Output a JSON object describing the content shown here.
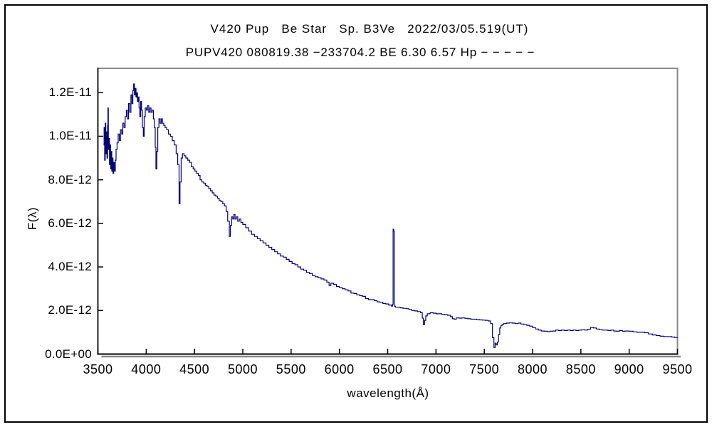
{
  "window": {
    "background": "#ffffff",
    "border_color": "#000000"
  },
  "chart_data": {
    "type": "line",
    "title": "V420 Pup   Be Star   Sp. B3Ve   2022/03/05.519(UT)",
    "subtitle": "PUPV420 080819.38 −233704.2 BE 6.30 6.57 Hp − − − − −",
    "xlabel": "wavelength(Å)",
    "ylabel": "F(λ)",
    "xlim": [
      3500,
      9500
    ],
    "ylim": [
      0,
      1.312e-11
    ],
    "grid": false,
    "legend": "none",
    "line_color": "#000078",
    "axis_color": "#000000",
    "frame_color": "#8a8a8a",
    "x_ticks": [
      {
        "v": 3500,
        "label": "3500"
      },
      {
        "v": 4000,
        "label": "4000"
      },
      {
        "v": 4500,
        "label": "4500"
      },
      {
        "v": 5000,
        "label": "5000"
      },
      {
        "v": 5500,
        "label": "5500"
      },
      {
        "v": 6000,
        "label": "6000"
      },
      {
        "v": 6500,
        "label": "6500"
      },
      {
        "v": 7000,
        "label": "7000"
      },
      {
        "v": 7500,
        "label": "7500"
      },
      {
        "v": 8000,
        "label": "8000"
      },
      {
        "v": 8500,
        "label": "8500"
      },
      {
        "v": 9000,
        "label": "9000"
      },
      {
        "v": 9500,
        "label": "9500"
      }
    ],
    "y_ticks": [
      {
        "v": 12,
        "label": "1.2E-11"
      },
      {
        "v": 10,
        "label": "1.0E-11"
      },
      {
        "v": 8,
        "label": "8.0E-12"
      },
      {
        "v": 6,
        "label": "6.0E-12"
      },
      {
        "v": 4,
        "label": "4.0E-12"
      },
      {
        "v": 2,
        "label": "2.0E-12"
      },
      {
        "v": 0,
        "label": "0.0E+00"
      }
    ],
    "points_lambda_A_flux_1e12": [
      [
        3558,
        9.6
      ],
      [
        3564,
        10.4
      ],
      [
        3570,
        8.9
      ],
      [
        3576,
        10.6
      ],
      [
        3582,
        9.2
      ],
      [
        3588,
        10.2
      ],
      [
        3594,
        9.0
      ],
      [
        3600,
        10.5
      ],
      [
        3604,
        11.3
      ],
      [
        3608,
        9.4
      ],
      [
        3614,
        9.9
      ],
      [
        3620,
        8.7
      ],
      [
        3626,
        9.6
      ],
      [
        3632,
        8.5
      ],
      [
        3638,
        9.3
      ],
      [
        3644,
        8.4
      ],
      [
        3650,
        9.0
      ],
      [
        3656,
        8.3
      ],
      [
        3664,
        8.8
      ],
      [
        3672,
        8.4
      ],
      [
        3680,
        8.9
      ],
      [
        3688,
        9.4
      ],
      [
        3698,
        9.7
      ],
      [
        3710,
        10.1
      ],
      [
        3722,
        9.8
      ],
      [
        3734,
        10.3
      ],
      [
        3746,
        10.1
      ],
      [
        3758,
        10.6
      ],
      [
        3770,
        10.4
      ],
      [
        3782,
        10.9
      ],
      [
        3794,
        11.2
      ],
      [
        3806,
        10.8
      ],
      [
        3818,
        11.5
      ],
      [
        3830,
        11.1
      ],
      [
        3842,
        11.9
      ],
      [
        3852,
        11.5
      ],
      [
        3862,
        12.1
      ],
      [
        3870,
        12.4
      ],
      [
        3878,
        11.9
      ],
      [
        3886,
        12.2
      ],
      [
        3894,
        11.8
      ],
      [
        3902,
        12.0
      ],
      [
        3910,
        11.6
      ],
      [
        3918,
        11.8
      ],
      [
        3926,
        11.3
      ],
      [
        3934,
        10.9
      ],
      [
        3943,
        11.6
      ],
      [
        3952,
        11.2
      ],
      [
        3961,
        10.4
      ],
      [
        3970,
        10.0
      ],
      [
        3979,
        10.9
      ],
      [
        3990,
        11.3
      ],
      [
        4002,
        11.2
      ],
      [
        4014,
        11.4
      ],
      [
        4026,
        11.1
      ],
      [
        4038,
        11.3
      ],
      [
        4050,
        11.1
      ],
      [
        4062,
        11.2
      ],
      [
        4074,
        10.8
      ],
      [
        4084,
        10.4
      ],
      [
        4093,
        9.5
      ],
      [
        4101,
        8.5
      ],
      [
        4110,
        9.3
      ],
      [
        4120,
        10.4
      ],
      [
        4132,
        10.8
      ],
      [
        4144,
        10.6
      ],
      [
        4156,
        10.8
      ],
      [
        4168,
        10.6
      ],
      [
        4182,
        10.5
      ],
      [
        4196,
        10.4
      ],
      [
        4212,
        10.3
      ],
      [
        4230,
        10.1
      ],
      [
        4250,
        10.0
      ],
      [
        4270,
        9.8
      ],
      [
        4290,
        9.6
      ],
      [
        4310,
        9.2
      ],
      [
        4326,
        8.7
      ],
      [
        4340,
        6.9
      ],
      [
        4350,
        7.9
      ],
      [
        4362,
        9.0
      ],
      [
        4376,
        9.2
      ],
      [
        4392,
        9.1
      ],
      [
        4410,
        9.0
      ],
      [
        4430,
        8.9
      ],
      [
        4450,
        8.8
      ],
      [
        4468,
        8.6
      ],
      [
        4486,
        8.5
      ],
      [
        4504,
        8.4
      ],
      [
        4522,
        8.3
      ],
      [
        4540,
        8.2
      ],
      [
        4558,
        8.0
      ],
      [
        4576,
        7.9
      ],
      [
        4594,
        7.85
      ],
      [
        4612,
        7.75
      ],
      [
        4630,
        7.7
      ],
      [
        4648,
        7.6
      ],
      [
        4666,
        7.5
      ],
      [
        4684,
        7.4
      ],
      [
        4702,
        7.3
      ],
      [
        4720,
        7.25
      ],
      [
        4738,
        7.15
      ],
      [
        4756,
        7.05
      ],
      [
        4774,
        7.0
      ],
      [
        4792,
        6.9
      ],
      [
        4810,
        6.8
      ],
      [
        4828,
        6.55
      ],
      [
        4844,
        6.1
      ],
      [
        4861,
        5.4
      ],
      [
        4872,
        5.9
      ],
      [
        4884,
        6.3
      ],
      [
        4896,
        6.2
      ],
      [
        4908,
        6.4
      ],
      [
        4920,
        6.2
      ],
      [
        4934,
        6.3
      ],
      [
        4948,
        6.1
      ],
      [
        4964,
        6.2
      ],
      [
        4980,
        6.05
      ],
      [
        5000,
        5.95
      ],
      [
        5030,
        5.8
      ],
      [
        5060,
        5.65
      ],
      [
        5090,
        5.5
      ],
      [
        5120,
        5.4
      ],
      [
        5150,
        5.3
      ],
      [
        5180,
        5.2
      ],
      [
        5210,
        5.1
      ],
      [
        5240,
        5.0
      ],
      [
        5270,
        4.9
      ],
      [
        5300,
        4.8
      ],
      [
        5330,
        4.7
      ],
      [
        5360,
        4.6
      ],
      [
        5390,
        4.5
      ],
      [
        5420,
        4.45
      ],
      [
        5450,
        4.35
      ],
      [
        5480,
        4.25
      ],
      [
        5510,
        4.15
      ],
      [
        5540,
        4.1
      ],
      [
        5570,
        4.0
      ],
      [
        5600,
        3.9
      ],
      [
        5630,
        3.85
      ],
      [
        5660,
        3.75
      ],
      [
        5690,
        3.7
      ],
      [
        5720,
        3.6
      ],
      [
        5750,
        3.55
      ],
      [
        5780,
        3.5
      ],
      [
        5810,
        3.45
      ],
      [
        5840,
        3.4
      ],
      [
        5870,
        3.3
      ],
      [
        5893,
        3.15
      ],
      [
        5912,
        3.25
      ],
      [
        5940,
        3.2
      ],
      [
        5970,
        3.1
      ],
      [
        6000,
        3.05
      ],
      [
        6030,
        3.0
      ],
      [
        6060,
        2.95
      ],
      [
        6090,
        2.9
      ],
      [
        6120,
        2.8
      ],
      [
        6150,
        2.78
      ],
      [
        6180,
        2.72
      ],
      [
        6210,
        2.68
      ],
      [
        6240,
        2.65
      ],
      [
        6270,
        2.55
      ],
      [
        6300,
        2.5
      ],
      [
        6330,
        2.5
      ],
      [
        6360,
        2.45
      ],
      [
        6390,
        2.4
      ],
      [
        6420,
        2.38
      ],
      [
        6450,
        2.32
      ],
      [
        6480,
        2.3
      ],
      [
        6510,
        2.25
      ],
      [
        6540,
        2.2
      ],
      [
        6550,
        2.28
      ],
      [
        6556,
        5.73
      ],
      [
        6562,
        5.65
      ],
      [
        6568,
        2.2
      ],
      [
        6580,
        2.15
      ],
      [
        6600,
        2.15
      ],
      [
        6630,
        2.12
      ],
      [
        6660,
        2.1
      ],
      [
        6690,
        2.08
      ],
      [
        6720,
        2.05
      ],
      [
        6750,
        2.0
      ],
      [
        6780,
        1.98
      ],
      [
        6810,
        1.95
      ],
      [
        6840,
        1.9
      ],
      [
        6858,
        1.65
      ],
      [
        6870,
        1.35
      ],
      [
        6882,
        1.55
      ],
      [
        6894,
        1.75
      ],
      [
        6910,
        1.85
      ],
      [
        6940,
        1.9
      ],
      [
        6970,
        1.88
      ],
      [
        7000,
        1.85
      ],
      [
        7030,
        1.85
      ],
      [
        7060,
        1.82
      ],
      [
        7090,
        1.8
      ],
      [
        7120,
        1.78
      ],
      [
        7150,
        1.72
      ],
      [
        7170,
        1.62
      ],
      [
        7190,
        1.6
      ],
      [
        7210,
        1.66
      ],
      [
        7240,
        1.65
      ],
      [
        7270,
        1.66
      ],
      [
        7300,
        1.64
      ],
      [
        7330,
        1.62
      ],
      [
        7360,
        1.6
      ],
      [
        7390,
        1.6
      ],
      [
        7420,
        1.58
      ],
      [
        7450,
        1.57
      ],
      [
        7480,
        1.56
      ],
      [
        7510,
        1.55
      ],
      [
        7540,
        1.52
      ],
      [
        7565,
        1.4
      ],
      [
        7585,
        0.75
      ],
      [
        7600,
        0.3
      ],
      [
        7612,
        0.5
      ],
      [
        7624,
        0.42
      ],
      [
        7636,
        0.55
      ],
      [
        7648,
        0.9
      ],
      [
        7660,
        1.2
      ],
      [
        7672,
        1.3
      ],
      [
        7684,
        1.35
      ],
      [
        7700,
        1.4
      ],
      [
        7730,
        1.42
      ],
      [
        7760,
        1.43
      ],
      [
        7790,
        1.42
      ],
      [
        7820,
        1.4
      ],
      [
        7850,
        1.42
      ],
      [
        7880,
        1.38
      ],
      [
        7910,
        1.35
      ],
      [
        7940,
        1.32
      ],
      [
        7970,
        1.28
      ],
      [
        8000,
        1.22
      ],
      [
        8030,
        1.15
      ],
      [
        8060,
        1.1
      ],
      [
        8090,
        1.06
      ],
      [
        8120,
        1.05
      ],
      [
        8150,
        1.03
      ],
      [
        8180,
        1.05
      ],
      [
        8210,
        1.06
      ],
      [
        8240,
        1.1
      ],
      [
        8270,
        1.08
      ],
      [
        8300,
        1.1
      ],
      [
        8330,
        1.08
      ],
      [
        8360,
        1.1
      ],
      [
        8390,
        1.08
      ],
      [
        8420,
        1.1
      ],
      [
        8450,
        1.08
      ],
      [
        8480,
        1.1
      ],
      [
        8510,
        1.12
      ],
      [
        8540,
        1.1
      ],
      [
        8570,
        1.14
      ],
      [
        8600,
        1.22
      ],
      [
        8630,
        1.2
      ],
      [
        8660,
        1.15
      ],
      [
        8690,
        1.12
      ],
      [
        8720,
        1.1
      ],
      [
        8750,
        1.1
      ],
      [
        8780,
        1.08
      ],
      [
        8810,
        1.1
      ],
      [
        8840,
        1.06
      ],
      [
        8870,
        1.05
      ],
      [
        8900,
        1.08
      ],
      [
        8930,
        1.05
      ],
      [
        8960,
        1.06
      ],
      [
        9000,
        1.05
      ],
      [
        9040,
        1.02
      ],
      [
        9080,
        1.0
      ],
      [
        9120,
        1.0
      ],
      [
        9160,
        0.98
      ],
      [
        9200,
        0.92
      ],
      [
        9240,
        0.88
      ],
      [
        9280,
        0.85
      ],
      [
        9320,
        0.82
      ],
      [
        9360,
        0.8
      ],
      [
        9400,
        0.8
      ],
      [
        9440,
        0.78
      ],
      [
        9470,
        0.76
      ],
      [
        9500,
        0.77
      ]
    ]
  }
}
